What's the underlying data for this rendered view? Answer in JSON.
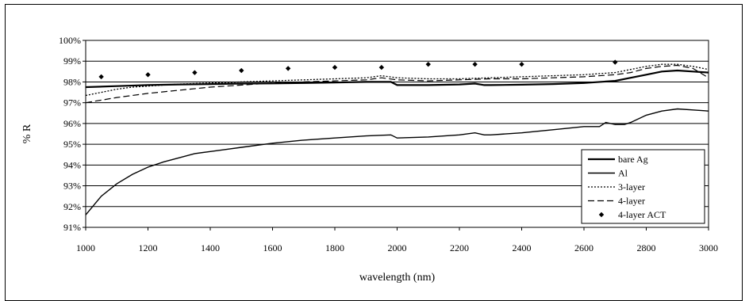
{
  "chart_data": {
    "type": "line",
    "xlabel": "wavelength (nm)",
    "ylabel": "% R",
    "xlim": [
      1000,
      3000
    ],
    "ylim": [
      91,
      100
    ],
    "x_ticks": [
      1000,
      1200,
      1400,
      1600,
      1800,
      2000,
      2200,
      2400,
      2600,
      2800,
      3000
    ],
    "y_ticks": [
      91,
      92,
      93,
      94,
      95,
      96,
      97,
      98,
      99,
      100
    ],
    "y_tick_labels": [
      "91%",
      "92%",
      "93%",
      "94%",
      "95%",
      "96%",
      "97%",
      "98%",
      "99%",
      "100%"
    ],
    "grid": "horizontal",
    "legend_position": "bottom-right",
    "series": [
      {
        "name": "bare Ag",
        "style": "solid-thick",
        "x": [
          1000,
          1100,
          1200,
          1300,
          1400,
          1500,
          1600,
          1700,
          1800,
          1900,
          1980,
          2000,
          2100,
          2200,
          2250,
          2280,
          2300,
          2400,
          2500,
          2600,
          2700,
          2750,
          2800,
          2850,
          2900,
          2950,
          3000
        ],
        "y": [
          97.75,
          97.8,
          97.85,
          97.88,
          97.9,
          97.92,
          97.93,
          97.95,
          97.97,
          98.0,
          98.0,
          97.85,
          97.85,
          97.88,
          97.92,
          97.85,
          97.85,
          97.87,
          97.9,
          97.95,
          98.05,
          98.2,
          98.35,
          98.5,
          98.55,
          98.5,
          98.45
        ]
      },
      {
        "name": "Al",
        "style": "solid-thin",
        "x": [
          1000,
          1050,
          1100,
          1150,
          1200,
          1250,
          1300,
          1350,
          1400,
          1450,
          1500,
          1600,
          1700,
          1800,
          1900,
          1980,
          2000,
          2100,
          2200,
          2250,
          2280,
          2300,
          2400,
          2500,
          2600,
          2650,
          2670,
          2700,
          2730,
          2750,
          2800,
          2850,
          2900,
          2950,
          3000
        ],
        "y": [
          91.6,
          92.5,
          93.1,
          93.55,
          93.9,
          94.15,
          94.35,
          94.55,
          94.65,
          94.75,
          94.85,
          95.05,
          95.2,
          95.3,
          95.4,
          95.45,
          95.3,
          95.35,
          95.45,
          95.55,
          95.45,
          95.45,
          95.55,
          95.7,
          95.85,
          95.85,
          96.05,
          95.95,
          95.95,
          96.05,
          96.4,
          96.6,
          96.7,
          96.65,
          96.6
        ]
      },
      {
        "name": "3-layer",
        "style": "dotted",
        "x": [
          1000,
          1050,
          1100,
          1150,
          1200,
          1300,
          1400,
          1500,
          1600,
          1700,
          1800,
          1900,
          1950,
          2000,
          2100,
          2200,
          2300,
          2400,
          2500,
          2600,
          2700,
          2750,
          2800,
          2850,
          2900,
          2950,
          3000
        ],
        "y": [
          97.35,
          97.5,
          97.65,
          97.75,
          97.8,
          97.9,
          97.95,
          98.0,
          98.05,
          98.1,
          98.15,
          98.2,
          98.3,
          98.2,
          98.15,
          98.15,
          98.2,
          98.25,
          98.3,
          98.35,
          98.45,
          98.6,
          98.75,
          98.85,
          98.85,
          98.75,
          98.6
        ]
      },
      {
        "name": "4-layer",
        "style": "dashed",
        "x": [
          1000,
          1100,
          1200,
          1300,
          1400,
          1500,
          1600,
          1700,
          1800,
          1900,
          1950,
          2000,
          2100,
          2200,
          2300,
          2400,
          2500,
          2600,
          2700,
          2750,
          2800,
          2850,
          2900,
          2950,
          3000
        ],
        "y": [
          97.0,
          97.25,
          97.45,
          97.6,
          97.75,
          97.85,
          97.95,
          98.0,
          98.05,
          98.1,
          98.2,
          98.1,
          98.05,
          98.1,
          98.15,
          98.15,
          98.2,
          98.25,
          98.35,
          98.45,
          98.65,
          98.75,
          98.8,
          98.65,
          98.2
        ]
      },
      {
        "name": "4-layer ACT",
        "style": "diamond-markers",
        "x": [
          1050,
          1200,
          1350,
          1500,
          1650,
          1800,
          1950,
          2100,
          2250,
          2400,
          2700
        ],
        "y": [
          98.25,
          98.35,
          98.45,
          98.55,
          98.65,
          98.7,
          98.7,
          98.85,
          98.85,
          98.85,
          98.95
        ]
      }
    ]
  }
}
